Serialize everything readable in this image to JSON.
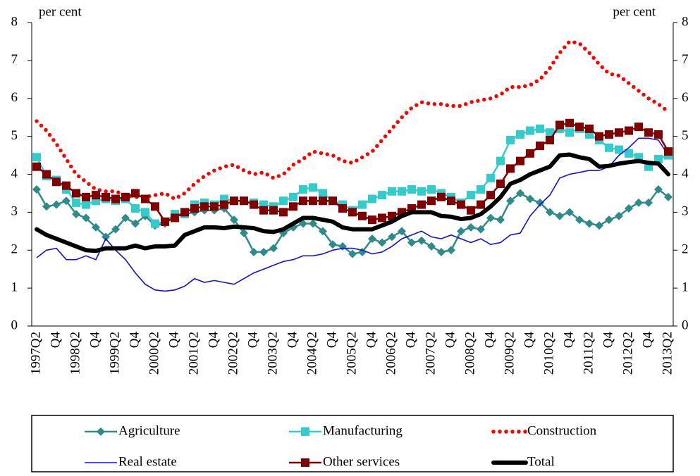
{
  "chart_data": {
    "type": "line",
    "y_label": "per cent",
    "y2_label": "per cent",
    "categories": [
      "1997Q2",
      null,
      "Q4",
      null,
      "1998Q2",
      null,
      "Q4",
      null,
      "1999Q2",
      null,
      "Q4",
      null,
      "2000Q2",
      null,
      "Q4",
      null,
      "2001Q2",
      null,
      "Q4",
      null,
      "2002Q2",
      null,
      "Q4",
      null,
      "2003Q2",
      null,
      "Q4",
      null,
      "2004Q2",
      null,
      "Q4",
      null,
      "2005Q2",
      null,
      "Q4",
      null,
      "2006Q2",
      null,
      "Q4",
      null,
      "2007Q2",
      null,
      "Q4",
      null,
      "2008Q2",
      null,
      "Q4",
      null,
      "2009Q2",
      null,
      "Q4",
      null,
      "2010Q2",
      null,
      "Q4",
      null,
      "2011Q2",
      null,
      "Q4",
      null,
      "2012Q2",
      null,
      "Q4",
      null,
      "2013Q2"
    ],
    "ylim": [
      0,
      8
    ],
    "yticks": [
      0,
      1,
      2,
      3,
      4,
      5,
      6,
      7,
      8
    ],
    "y2lim": [
      0,
      8
    ],
    "y2ticks": [
      0,
      1,
      2,
      3,
      4,
      5,
      6,
      7,
      8
    ],
    "legend": "bottom",
    "series": [
      {
        "name": "Agriculture",
        "color": "#2e8b8b",
        "marker": "diamond",
        "line_style": "solid",
        "values": [
          3.6,
          3.15,
          3.2,
          3.3,
          2.95,
          2.85,
          2.6,
          2.35,
          2.55,
          2.85,
          2.7,
          2.9,
          2.65,
          2.7,
          2.9,
          2.95,
          3.0,
          3.05,
          3.05,
          3.1,
          2.8,
          2.45,
          1.95,
          1.95,
          2.05,
          2.45,
          2.6,
          2.7,
          2.7,
          2.5,
          2.15,
          2.1,
          1.9,
          1.95,
          2.3,
          2.2,
          2.35,
          2.5,
          2.2,
          2.25,
          2.1,
          1.95,
          2.0,
          2.5,
          2.6,
          2.55,
          2.85,
          2.8,
          3.3,
          3.5,
          3.35,
          3.25,
          3.0,
          2.9,
          3.0,
          2.8,
          2.7,
          2.65,
          2.8,
          2.9,
          3.1,
          3.25,
          3.25,
          3.6,
          3.4
        ]
      },
      {
        "name": "Manufacturing",
        "color": "#33cccc",
        "marker": "square",
        "line_style": "solid",
        "values": [
          4.45,
          3.95,
          3.85,
          3.6,
          3.25,
          3.2,
          3.3,
          3.35,
          3.3,
          3.35,
          3.1,
          3.0,
          2.7,
          2.75,
          2.95,
          2.95,
          3.2,
          3.25,
          3.2,
          3.35,
          3.3,
          3.3,
          3.25,
          3.2,
          3.15,
          3.3,
          3.4,
          3.6,
          3.65,
          3.5,
          3.3,
          3.2,
          3.05,
          3.2,
          3.35,
          3.45,
          3.55,
          3.55,
          3.6,
          3.55,
          3.6,
          3.5,
          3.4,
          3.25,
          3.45,
          3.6,
          3.9,
          4.35,
          4.9,
          5.05,
          5.15,
          5.2,
          5.1,
          5.2,
          5.1,
          5.2,
          5.05,
          4.9,
          4.7,
          4.65,
          4.55,
          4.45,
          4.2,
          4.4,
          4.5
        ]
      },
      {
        "name": "Construction",
        "color": "#ff0000",
        "marker": "none",
        "line_style": "dotted",
        "values": [
          5.4,
          5.15,
          4.8,
          4.4,
          4.0,
          3.8,
          3.6,
          3.55,
          3.55,
          3.45,
          3.4,
          3.4,
          3.45,
          3.5,
          3.35,
          3.5,
          3.75,
          3.95,
          4.1,
          4.2,
          4.25,
          4.1,
          4.0,
          4.05,
          3.9,
          4.0,
          4.25,
          4.4,
          4.6,
          4.55,
          4.5,
          4.35,
          4.3,
          4.45,
          4.6,
          4.9,
          5.2,
          5.5,
          5.75,
          5.9,
          5.85,
          5.85,
          5.8,
          5.8,
          5.9,
          5.95,
          6.0,
          6.1,
          6.3,
          6.3,
          6.35,
          6.5,
          6.8,
          7.2,
          7.5,
          7.45,
          7.2,
          6.9,
          6.65,
          6.6,
          6.4,
          6.2,
          6.0,
          5.85,
          5.65
        ]
      },
      {
        "name": "Real estate",
        "color": "#1010e0",
        "marker": "none",
        "line_style": "solid",
        "values": [
          1.8,
          2.0,
          2.05,
          1.75,
          1.75,
          1.85,
          1.75,
          2.3,
          2.0,
          1.75,
          1.4,
          1.1,
          0.95,
          0.92,
          0.95,
          1.05,
          1.25,
          1.15,
          1.2,
          1.15,
          1.1,
          1.25,
          1.4,
          1.5,
          1.6,
          1.7,
          1.75,
          1.85,
          1.85,
          1.9,
          2.0,
          2.05,
          2.05,
          2.0,
          1.9,
          1.95,
          2.1,
          2.3,
          2.4,
          2.5,
          2.35,
          2.3,
          2.4,
          2.3,
          2.2,
          2.3,
          2.15,
          2.2,
          2.4,
          2.45,
          2.9,
          3.2,
          3.45,
          3.9,
          4.0,
          4.05,
          4.1,
          4.1,
          4.2,
          4.5,
          4.7,
          4.95,
          4.95,
          4.9,
          4.5
        ]
      },
      {
        "name": "Other services",
        "color": "#800000",
        "marker": "square",
        "line_style": "solid",
        "values": [
          4.2,
          4.0,
          3.8,
          3.7,
          3.5,
          3.4,
          3.45,
          3.4,
          3.35,
          3.4,
          3.5,
          3.35,
          3.15,
          2.75,
          2.85,
          3.0,
          3.1,
          3.15,
          3.15,
          3.2,
          3.3,
          3.3,
          3.2,
          3.05,
          3.05,
          3.0,
          3.15,
          3.3,
          3.3,
          3.3,
          3.3,
          3.1,
          3.0,
          2.9,
          2.8,
          2.85,
          2.9,
          3.0,
          3.1,
          3.2,
          3.3,
          3.4,
          3.3,
          3.2,
          3.05,
          3.2,
          3.45,
          3.75,
          4.15,
          4.35,
          4.55,
          4.75,
          4.9,
          5.3,
          5.35,
          5.25,
          5.2,
          5.0,
          5.05,
          5.1,
          5.15,
          5.25,
          5.1,
          5.05,
          4.6
        ]
      },
      {
        "name": "Total",
        "color": "#000000",
        "marker": "none",
        "line_style": "thick",
        "values": [
          2.55,
          2.4,
          2.3,
          2.2,
          2.1,
          2.0,
          1.98,
          2.05,
          2.05,
          2.05,
          2.12,
          2.05,
          2.1,
          2.1,
          2.12,
          2.4,
          2.5,
          2.6,
          2.6,
          2.58,
          2.62,
          2.6,
          2.58,
          2.5,
          2.48,
          2.55,
          2.7,
          2.85,
          2.85,
          2.8,
          2.75,
          2.6,
          2.55,
          2.55,
          2.55,
          2.65,
          2.75,
          2.9,
          3.0,
          3.0,
          3.0,
          2.9,
          2.88,
          2.82,
          2.85,
          2.95,
          3.15,
          3.4,
          3.75,
          3.85,
          4.0,
          4.1,
          4.2,
          4.5,
          4.52,
          4.45,
          4.4,
          4.2,
          4.22,
          4.28,
          4.32,
          4.35,
          4.3,
          4.28,
          4.0
        ]
      }
    ]
  }
}
